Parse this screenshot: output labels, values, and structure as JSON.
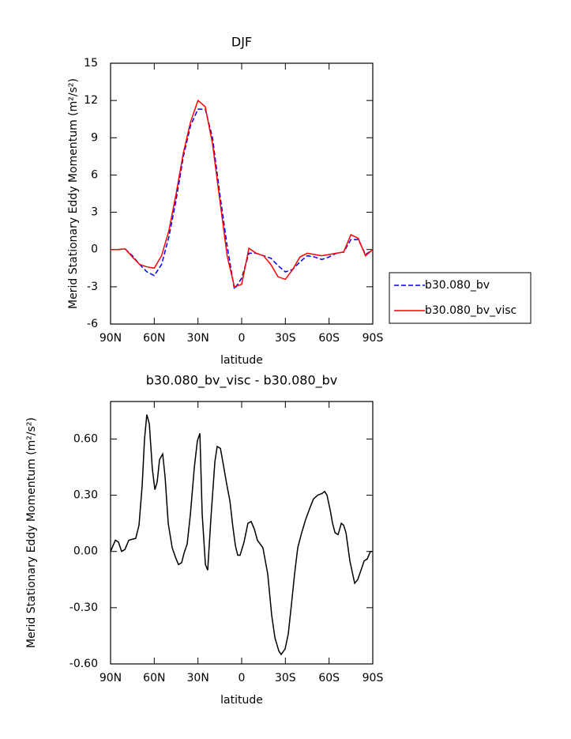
{
  "chart_data": [
    {
      "type": "line",
      "title": "DJF",
      "xlabel": "latitude",
      "ylabel": "Merid Stationary Eddy Momentum (m²/s²)",
      "x": [
        90,
        85,
        80,
        75,
        70,
        65,
        60,
        55,
        50,
        45,
        40,
        35,
        30,
        25,
        20,
        15,
        10,
        5,
        0,
        -5,
        -10,
        -15,
        -20,
        -25,
        -30,
        -35,
        -40,
        -45,
        -50,
        -55,
        -60,
        -65,
        -70,
        -75,
        -80,
        -85,
        -90
      ],
      "series": [
        {
          "name": "b30.080_bv",
          "color": "#0000ff",
          "style": "dashed",
          "values": [
            0,
            0,
            0.05,
            -0.5,
            -1.2,
            -1.8,
            -2.1,
            -1.2,
            1,
            4,
            7.5,
            10,
            11.3,
            11.3,
            9,
            4.5,
            0.3,
            -3.2,
            -2.3,
            -0.3,
            -0.3,
            -0.5,
            -0.7,
            -1.3,
            -1.8,
            -1.6,
            -1.0,
            -0.5,
            -0.6,
            -0.8,
            -0.6,
            -0.3,
            -0.2,
            0.8,
            0.8,
            -0.4,
            0
          ]
        },
        {
          "name": "b30.080_bv_visc",
          "color": "#ff0000",
          "style": "solid",
          "values": [
            0,
            0,
            0.05,
            -0.6,
            -1.2,
            -1.4,
            -1.5,
            -0.5,
            1.5,
            4.5,
            7.8,
            10.3,
            12,
            11.5,
            8.5,
            4,
            -0.5,
            -3,
            -2.8,
            0.1,
            -0.3,
            -0.5,
            -1.2,
            -2.2,
            -2.4,
            -1.6,
            -0.6,
            -0.3,
            -0.4,
            -0.5,
            -0.4,
            -0.3,
            -0.2,
            1.2,
            0.9,
            -0.5,
            0
          ]
        }
      ],
      "xlim": [
        90,
        -90
      ],
      "xticks": [
        {
          "value": 90,
          "label": "90N"
        },
        {
          "value": 60,
          "label": "60N"
        },
        {
          "value": 30,
          "label": "30N"
        },
        0,
        {
          "value": -30,
          "label": "30S"
        },
        {
          "value": -60,
          "label": "60S"
        },
        {
          "value": -90,
          "label": "90S"
        }
      ],
      "ylim": [
        -6,
        15
      ],
      "yticks": [
        -6,
        -3,
        0,
        3,
        6,
        9,
        12,
        15
      ],
      "legend": "right"
    },
    {
      "type": "line",
      "title": "b30.080_bv_visc - b30.080_bv",
      "xlabel": "latitude",
      "ylabel": "Merid Stationary Eddy Momentum (m²/s²)",
      "x": [
        90,
        86.7,
        84.6,
        82.4,
        80.2,
        77.5,
        72.7,
        70.5,
        68.3,
        66.7,
        65.1,
        63.4,
        61.3,
        59.6,
        58.0,
        56.4,
        54.2,
        52.6,
        50.4,
        47.7,
        45.5,
        43.4,
        41.2,
        39.6,
        37.4,
        35.2,
        32.5,
        30.4,
        28.7,
        27.1,
        24.9,
        23.3,
        21.1,
        18.4,
        16.8,
        14.6,
        12.5,
        10.3,
        8.1,
        6.0,
        4.3,
        2.7,
        1.1,
        -1.6,
        -4.3,
        -6.5,
        -8.7,
        -10.8,
        -14.6,
        -17.9,
        -20.6,
        -22.8,
        -25.5,
        -27.1,
        -29.8,
        -32.0,
        -34.2,
        -36.3,
        -38.5,
        -41.2,
        -43.9,
        -47.2,
        -49.3,
        -52.1,
        -55.3,
        -57.0,
        -58.6,
        -60.8,
        -62.4,
        -64.1,
        -66.2,
        -68.4,
        -70.0,
        -71.6,
        -74.3,
        -77.6,
        -79.7,
        -81.9,
        -84.1,
        -86.2,
        -88.4,
        -90
      ],
      "values": [
        0,
        0.06,
        0.05,
        0,
        0.01,
        0.06,
        0.07,
        0.14,
        0.35,
        0.6,
        0.73,
        0.68,
        0.44,
        0.33,
        0.37,
        0.49,
        0.52,
        0.4,
        0.15,
        0.02,
        -0.03,
        -0.07,
        -0.06,
        -0.01,
        0.04,
        0.2,
        0.45,
        0.59,
        0.63,
        0.2,
        -0.07,
        -0.1,
        0.18,
        0.48,
        0.56,
        0.55,
        0.46,
        0.36,
        0.27,
        0.13,
        0.03,
        -0.02,
        -0.02,
        0.05,
        0.15,
        0.16,
        0.12,
        0.06,
        0.02,
        -0.12,
        -0.34,
        -0.46,
        -0.53,
        -0.55,
        -0.52,
        -0.44,
        -0.28,
        -0.12,
        0.02,
        0.1,
        0.17,
        0.24,
        0.28,
        0.3,
        0.31,
        0.32,
        0.3,
        0.22,
        0.15,
        0.1,
        0.09,
        0.15,
        0.14,
        0.1,
        -0.05,
        -0.17,
        -0.15,
        -0.1,
        -0.05,
        -0.04,
        0,
        0
      ],
      "color": "#000000",
      "xlim": [
        90,
        -90
      ],
      "xticks": [
        {
          "value": 90,
          "label": "90N"
        },
        {
          "value": 60,
          "label": "60N"
        },
        {
          "value": 30,
          "label": "30N"
        },
        0,
        {
          "value": -30,
          "label": "30S"
        },
        {
          "value": -60,
          "label": "60S"
        },
        {
          "value": -90,
          "label": "90S"
        }
      ],
      "ylim": [
        -0.6,
        0.8
      ],
      "yticks": [
        {
          "value": -0.6,
          "label": "-0.60"
        },
        {
          "value": -0.3,
          "label": "-0.30"
        },
        {
          "value": 0,
          "label": "0.00"
        },
        {
          "value": 0.3,
          "label": "0.30"
        },
        {
          "value": 0.6,
          "label": "0.60"
        }
      ]
    }
  ]
}
